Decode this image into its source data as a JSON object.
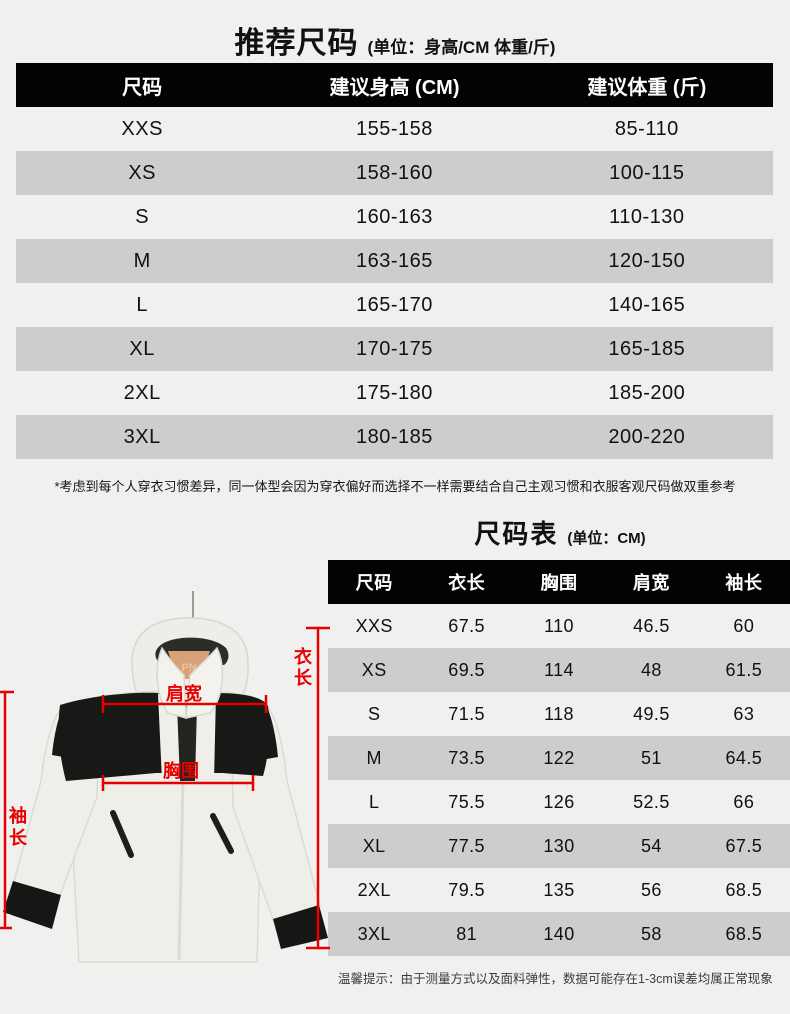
{
  "recommend_table": {
    "title": "推荐尺码",
    "unit_note": "(单位：身高/CM 体重/斤)",
    "columns": [
      "尺码",
      "建议身高 (CM)",
      "建议体重 (斤)"
    ],
    "rows": [
      [
        "XXS",
        "155-158",
        "85-110"
      ],
      [
        "XS",
        "158-160",
        "100-115"
      ],
      [
        "S",
        "160-163",
        "110-130"
      ],
      [
        "M",
        "163-165",
        "120-150"
      ],
      [
        "L",
        "165-170",
        "140-165"
      ],
      [
        "XL",
        "170-175",
        "165-185"
      ],
      [
        "2XL",
        "175-180",
        "185-200"
      ],
      [
        "3XL",
        "180-185",
        "200-220"
      ]
    ],
    "footnote": "*考虑到每个人穿衣习惯差异，同一体型会因为穿衣偏好而选择不一样需要结合自己主观习惯和衣服客观尺码做双重参考"
  },
  "size_table": {
    "title": "尺码表",
    "unit_note": "(单位：CM)",
    "columns": [
      "尺码",
      "衣长",
      "胸围",
      "肩宽",
      "袖长"
    ],
    "rows": [
      [
        "XXS",
        "67.5",
        "110",
        "46.5",
        "60"
      ],
      [
        "XS",
        "69.5",
        "114",
        "48",
        "61.5"
      ],
      [
        "S",
        "71.5",
        "118",
        "49.5",
        "63"
      ],
      [
        "M",
        "73.5",
        "122",
        "51",
        "64.5"
      ],
      [
        "L",
        "75.5",
        "126",
        "52.5",
        "66"
      ],
      [
        "XL",
        "77.5",
        "130",
        "54",
        "67.5"
      ],
      [
        "2XL",
        "79.5",
        "135",
        "56",
        "68.5"
      ],
      [
        "3XL",
        "81",
        "140",
        "58",
        "68.5"
      ]
    ],
    "footnote": "温馨提示：由于测量方式以及面料弹性，数据可能存在1-3cm误差均属正常现象"
  },
  "jacket": {
    "hanger_label": "PN",
    "measure_labels": {
      "shoulder": "肩宽",
      "chest": "胸围",
      "length_chars": [
        "衣",
        "长"
      ],
      "sleeve_chars": [
        "袖",
        "长"
      ]
    },
    "annotation_color": "#e60000"
  },
  "colors": {
    "page_bg": "#f0f0ef",
    "header_bg": "#030303",
    "header_text": "#ffffff",
    "row_alt_bg": "#cdcdcd",
    "text": "#111111",
    "annotation_red": "#e60000",
    "hanger_wood": "#d6a379"
  }
}
